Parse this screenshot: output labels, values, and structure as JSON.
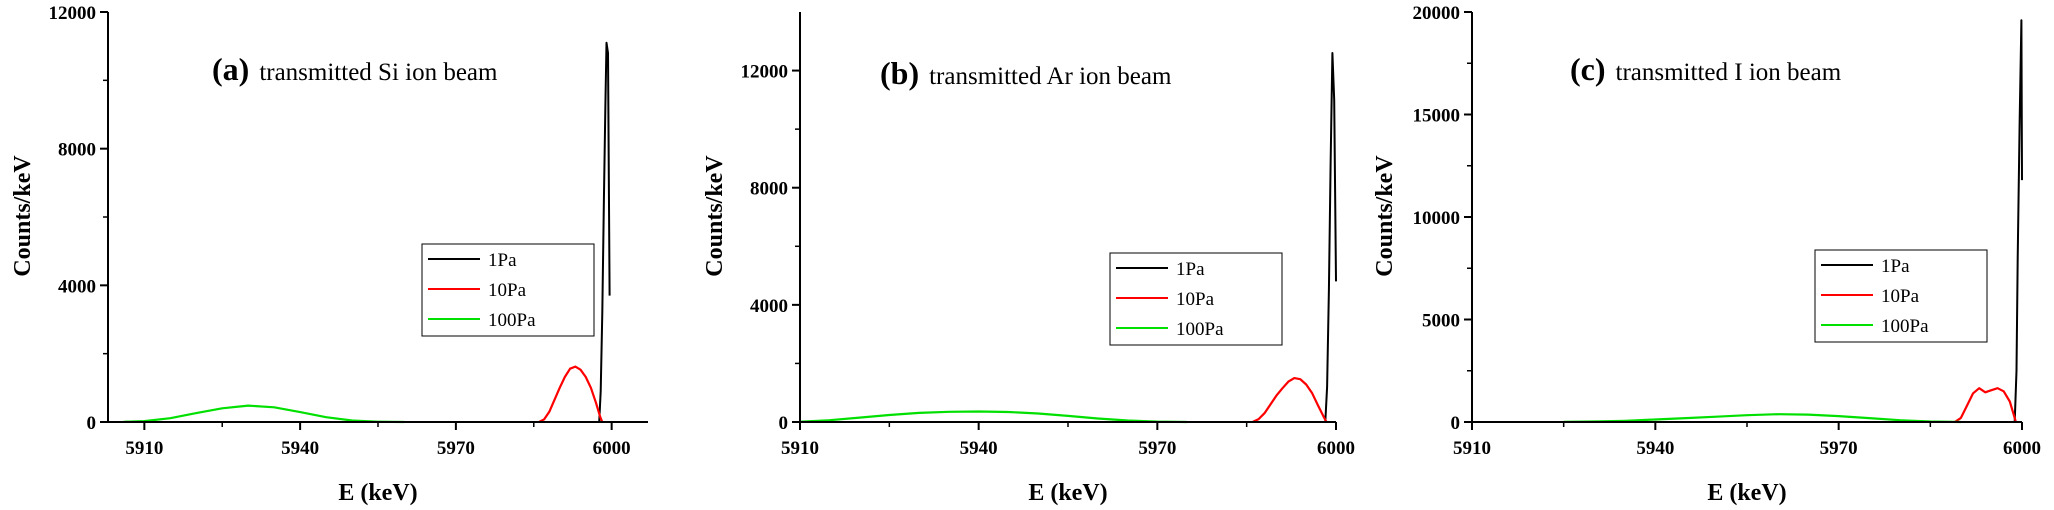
{
  "chart_data": [
    {
      "type": "line",
      "panel_letter": "(a)",
      "caption": "transmitted Si ion beam",
      "xlabel": "E (keV)",
      "ylabel": "Counts/keV",
      "xlim": [
        5903,
        6007
      ],
      "ylim": [
        0,
        12000
      ],
      "xticks": [
        5910,
        5940,
        5970,
        6000
      ],
      "yticks": [
        0,
        4000,
        8000,
        12000
      ],
      "legend_position": "center-right",
      "series": [
        {
          "name": "1Pa",
          "color": "#000000",
          "points": [
            [
              5997.6,
              0
            ],
            [
              5997.9,
              900
            ],
            [
              5998.2,
              3200
            ],
            [
              5998.5,
              6500
            ],
            [
              5998.8,
              9300
            ],
            [
              5999.0,
              11100
            ],
            [
              5999.3,
              10800
            ],
            [
              5999.6,
              3700
            ]
          ]
        },
        {
          "name": "10Pa",
          "color": "#ff0000",
          "points": [
            [
              5986,
              0
            ],
            [
              5987,
              80
            ],
            [
              5988,
              300
            ],
            [
              5989,
              650
            ],
            [
              5990,
              1000
            ],
            [
              5991,
              1320
            ],
            [
              5992,
              1560
            ],
            [
              5993,
              1620
            ],
            [
              5994,
              1530
            ],
            [
              5995,
              1320
            ],
            [
              5996,
              1000
            ],
            [
              5997,
              550
            ],
            [
              5997.8,
              150
            ],
            [
              5998.2,
              0
            ]
          ]
        },
        {
          "name": "100Pa",
          "color": "#00e000",
          "points": [
            [
              5906,
              5
            ],
            [
              5910,
              25
            ],
            [
              5915,
              110
            ],
            [
              5920,
              260
            ],
            [
              5925,
              400
            ],
            [
              5930,
              480
            ],
            [
              5935,
              430
            ],
            [
              5940,
              290
            ],
            [
              5945,
              140
            ],
            [
              5950,
              45
            ],
            [
              5955,
              8
            ],
            [
              5960,
              0
            ]
          ]
        }
      ]
    },
    {
      "type": "line",
      "panel_letter": "(b)",
      "caption": "transmitted Ar ion beam",
      "xlabel": "E (keV)",
      "ylabel": "Counts/keV",
      "xlim": [
        5910,
        6000
      ],
      "ylim": [
        0,
        14000
      ],
      "xticks": [
        5910,
        5940,
        5970,
        6000
      ],
      "yticks": [
        0,
        4000,
        8000,
        12000
      ],
      "legend_position": "center-right",
      "series": [
        {
          "name": "1Pa",
          "color": "#000000",
          "points": [
            [
              5998.2,
              0
            ],
            [
              5998.5,
              1200
            ],
            [
              5998.8,
              4500
            ],
            [
              5999.1,
              8800
            ],
            [
              5999.4,
              12600
            ],
            [
              5999.7,
              11000
            ],
            [
              6000.0,
              4800
            ]
          ]
        },
        {
          "name": "10Pa",
          "color": "#ff0000",
          "points": [
            [
              5986,
              0
            ],
            [
              5987,
              100
            ],
            [
              5988,
              300
            ],
            [
              5989,
              600
            ],
            [
              5990,
              900
            ],
            [
              5991,
              1150
            ],
            [
              5992,
              1380
            ],
            [
              5993,
              1500
            ],
            [
              5994,
              1460
            ],
            [
              5995,
              1280
            ],
            [
              5996,
              980
            ],
            [
              5997,
              560
            ],
            [
              5998,
              150
            ],
            [
              5998.4,
              0
            ]
          ]
        },
        {
          "name": "100Pa",
          "color": "#00e000",
          "points": [
            [
              5910,
              10
            ],
            [
              5915,
              60
            ],
            [
              5920,
              150
            ],
            [
              5925,
              240
            ],
            [
              5930,
              310
            ],
            [
              5935,
              350
            ],
            [
              5940,
              360
            ],
            [
              5945,
              340
            ],
            [
              5950,
              290
            ],
            [
              5955,
              210
            ],
            [
              5960,
              120
            ],
            [
              5965,
              50
            ],
            [
              5970,
              15
            ],
            [
              5975,
              0
            ]
          ]
        }
      ]
    },
    {
      "type": "line",
      "panel_letter": "(c)",
      "caption": "transmitted I ion beam",
      "xlabel": "E (keV)",
      "ylabel": "Counts/keV",
      "xlim": [
        5910,
        6000
      ],
      "ylim": [
        0,
        20000
      ],
      "xticks": [
        5910,
        5940,
        5970,
        6000
      ],
      "yticks": [
        0,
        5000,
        10000,
        15000,
        20000
      ],
      "legend_position": "center-right",
      "series": [
        {
          "name": "1Pa",
          "color": "#000000",
          "points": [
            [
              5998.8,
              0
            ],
            [
              5999.1,
              2500
            ],
            [
              5999.3,
              8000
            ],
            [
              5999.6,
              14500
            ],
            [
              5999.9,
              19600
            ],
            [
              6000.0,
              11800
            ]
          ]
        },
        {
          "name": "10Pa",
          "color": "#ff0000",
          "points": [
            [
              5989,
              0
            ],
            [
              5990,
              200
            ],
            [
              5991,
              800
            ],
            [
              5992,
              1400
            ],
            [
              5993,
              1650
            ],
            [
              5994,
              1450
            ],
            [
              5995,
              1550
            ],
            [
              5996,
              1650
            ],
            [
              5997,
              1500
            ],
            [
              5998,
              1000
            ],
            [
              5998.8,
              200
            ],
            [
              5999.0,
              0
            ]
          ]
        },
        {
          "name": "100Pa",
          "color": "#00e000",
          "points": [
            [
              5925,
              5
            ],
            [
              5930,
              25
            ],
            [
              5935,
              60
            ],
            [
              5940,
              120
            ],
            [
              5945,
              190
            ],
            [
              5950,
              260
            ],
            [
              5955,
              330
            ],
            [
              5960,
              380
            ],
            [
              5965,
              360
            ],
            [
              5970,
              290
            ],
            [
              5975,
              190
            ],
            [
              5980,
              90
            ],
            [
              5985,
              25
            ],
            [
              5990,
              0
            ]
          ]
        }
      ]
    }
  ]
}
